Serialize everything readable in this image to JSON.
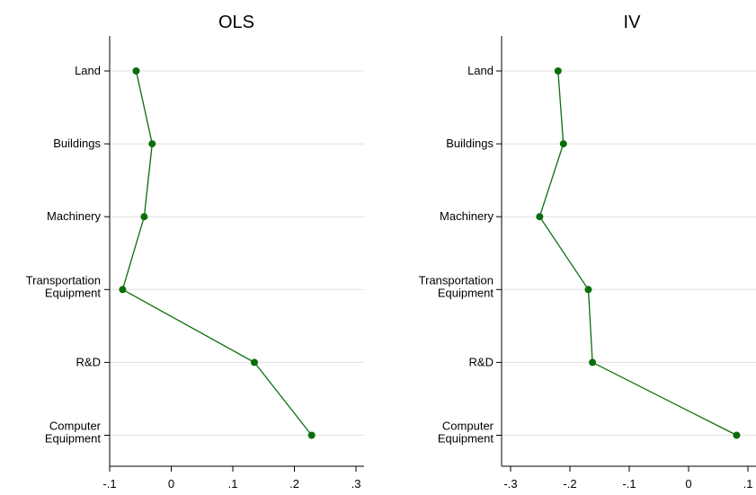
{
  "chart_data": [
    {
      "type": "line",
      "title": "OLS",
      "categories": [
        "Land",
        "Buildings",
        "Machinery",
        "Transportation Equipment",
        "R&D",
        "Computer Equipment"
      ],
      "category_lines": [
        [
          "Land"
        ],
        [
          "Buildings"
        ],
        [
          "Machinery"
        ],
        [
          "Transportation",
          "Equipment"
        ],
        [
          "R&D"
        ],
        [
          "Computer",
          "Equipment"
        ]
      ],
      "values": [
        -0.057,
        -0.031,
        -0.044,
        -0.079,
        0.135,
        0.228
      ],
      "xlim": [
        -0.1,
        0.3
      ],
      "xticks": [
        -0.1,
        0,
        0.1,
        0.2,
        0.3
      ],
      "xtick_labels": [
        "-.1",
        "0",
        ".1",
        ".2",
        ".3"
      ],
      "grid": true,
      "color": "#0b6e0b"
    },
    {
      "type": "line",
      "title": "IV",
      "categories": [
        "Land",
        "Buildings",
        "Machinery",
        "Transportation Equipment",
        "R&D",
        "Computer Equipment"
      ],
      "category_lines": [
        [
          "Land"
        ],
        [
          "Buildings"
        ],
        [
          "Machinery"
        ],
        [
          "Transportation",
          "Equipment"
        ],
        [
          "R&D"
        ],
        [
          "Computer",
          "Equipment"
        ]
      ],
      "values": [
        -0.22,
        -0.211,
        -0.251,
        -0.169,
        -0.162,
        0.081
      ],
      "xlim": [
        -0.3,
        0.1
      ],
      "xticks": [
        -0.3,
        -0.2,
        -0.1,
        0,
        0.1
      ],
      "xtick_labels": [
        "-.3",
        "-.2",
        "-.1",
        "0",
        ".1"
      ],
      "grid": true,
      "color": "#0b6e0b"
    }
  ]
}
